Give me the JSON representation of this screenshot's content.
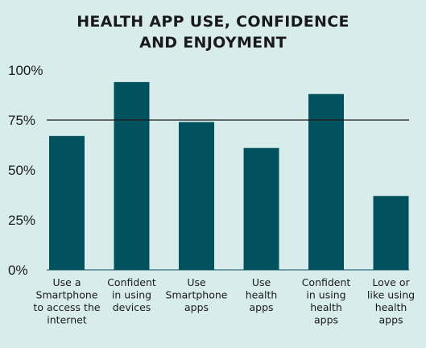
{
  "title_lines": [
    "HEALTH APP USE, CONFIDENCE",
    "AND ENJOYMENT"
  ],
  "colors": {
    "background": "#d9ecec",
    "bar": "#02515f",
    "reference_line": "#1a1a1a",
    "text": "#1a1a1a"
  },
  "chart_data": {
    "type": "bar",
    "title": "HEALTH APP USE, CONFIDENCE AND ENJOYMENT",
    "categories": [
      "Use a Smartphone to access the internet",
      "Confident in using devices",
      "Use Smartphone apps",
      "Use health apps",
      "Confident in using health apps",
      "Love or like using health apps"
    ],
    "category_label_lines": [
      [
        "Use a",
        "Smartphone",
        "to access the",
        "internet"
      ],
      [
        "Confident",
        "in using",
        "devices"
      ],
      [
        "Use",
        "Smartphone",
        "apps"
      ],
      [
        "Use",
        "health",
        "apps"
      ],
      [
        "Confident",
        "in using",
        "health",
        "apps"
      ],
      [
        "Love or",
        "like using",
        "health",
        "apps"
      ]
    ],
    "values": [
      67,
      94,
      74,
      61,
      88,
      37
    ],
    "ylim": [
      0,
      100
    ],
    "yticks": [
      0,
      25,
      50,
      75,
      100
    ],
    "ytick_labels": [
      "0%",
      "25%",
      "50%",
      "75%",
      "100%"
    ],
    "reference_line": 75,
    "xlabel": "",
    "ylabel": "",
    "grid": false,
    "legend": "none"
  }
}
